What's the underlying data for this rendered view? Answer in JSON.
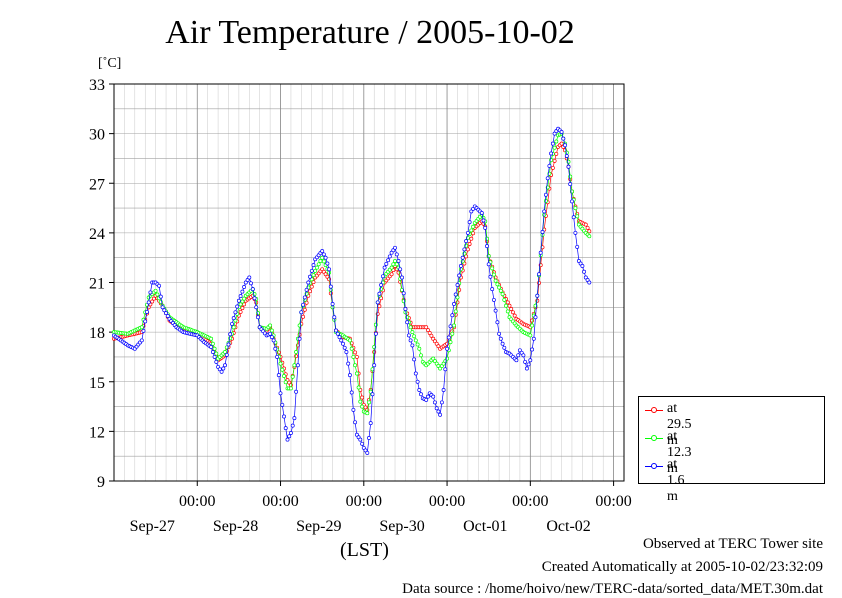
{
  "title": "Air Temperature / 2005-10-02",
  "unit": "[˚C]",
  "xlabel": "(LST)",
  "footer": {
    "line1": "Observed at TERC Tower site",
    "line2": "Created Automatically at 2005-10-02/23:32:09",
    "line3": "Data source : /home/hoivo/new/TERC-data/sorted_data/MET.30m.dat"
  },
  "colors": {
    "s1": "#ff0000",
    "s2": "#00ff00",
    "s3": "#0000ff",
    "grid": "#999999"
  },
  "chart_data": {
    "type": "line",
    "title": "Air Temperature / 2005-10-02",
    "ylabel": "[˚C]",
    "xlabel": "(LST)",
    "ylim": [
      9,
      33
    ],
    "yticks": [
      9,
      12,
      15,
      18,
      21,
      24,
      27,
      30,
      33
    ],
    "xlim_hours": [
      0,
      144
    ],
    "x_unit": "hours since 2005-09-26 12:00 LST",
    "xticks": [
      {
        "hour": 24,
        "time": "00:00",
        "date": "Sep-27"
      },
      {
        "hour": 48,
        "time": "00:00",
        "date": "Sep-28"
      },
      {
        "hour": 72,
        "time": "00:00",
        "date": "Sep-29"
      },
      {
        "hour": 96,
        "time": "00:00",
        "date": "Sep-30"
      },
      {
        "hour": 120,
        "time": "00:00",
        "date": "Oct-01"
      },
      {
        "hour": 144,
        "time": "00:00",
        "date": "Oct-02"
      }
    ],
    "grid": true,
    "legend_position": "bottom-right outside",
    "series": [
      {
        "name": "at 29.5 m",
        "color": "#ff0000",
        "points": [
          [
            0,
            17.6
          ],
          [
            4,
            17.8
          ],
          [
            8,
            18.0
          ],
          [
            10,
            19.5
          ],
          [
            12,
            20.2
          ],
          [
            14,
            19.6
          ],
          [
            16,
            18.7
          ],
          [
            20,
            18.1
          ],
          [
            24,
            17.9
          ],
          [
            28,
            17.3
          ],
          [
            30,
            16.3
          ],
          [
            32,
            16.6
          ],
          [
            34,
            17.6
          ],
          [
            36,
            19.0
          ],
          [
            38,
            19.9
          ],
          [
            40,
            20.2
          ],
          [
            41,
            19.8
          ],
          [
            42,
            18.3
          ],
          [
            44,
            18.1
          ],
          [
            45,
            18.3
          ],
          [
            46,
            17.6
          ],
          [
            48,
            16.5
          ],
          [
            50,
            15.1
          ],
          [
            51,
            14.8
          ],
          [
            52,
            15.9
          ],
          [
            54,
            18.5
          ],
          [
            56,
            20.2
          ],
          [
            58,
            21.3
          ],
          [
            60,
            21.8
          ],
          [
            62,
            21.2
          ],
          [
            63,
            19.5
          ],
          [
            64,
            18.1
          ],
          [
            66,
            17.7
          ],
          [
            68,
            17.6
          ],
          [
            70,
            16.5
          ],
          [
            71,
            14.5
          ],
          [
            72,
            13.6
          ],
          [
            73,
            13.3
          ],
          [
            74,
            14.5
          ],
          [
            76,
            19.1
          ],
          [
            78,
            21.0
          ],
          [
            80,
            21.5
          ],
          [
            81,
            22.0
          ],
          [
            82,
            21.6
          ],
          [
            84,
            19.4
          ],
          [
            86,
            18.3
          ],
          [
            90,
            18.3
          ],
          [
            92,
            17.6
          ],
          [
            94,
            17.0
          ],
          [
            96,
            17.3
          ],
          [
            98,
            18.3
          ],
          [
            100,
            21.3
          ],
          [
            102,
            23.0
          ],
          [
            104,
            24.3
          ],
          [
            106,
            24.7
          ],
          [
            107,
            24.4
          ],
          [
            108,
            22.6
          ],
          [
            110,
            21.3
          ],
          [
            112,
            20.4
          ],
          [
            114,
            19.6
          ],
          [
            116,
            18.8
          ],
          [
            118,
            18.5
          ],
          [
            120,
            18.3
          ],
          [
            122,
            19.9
          ],
          [
            124,
            24.2
          ],
          [
            126,
            27.5
          ],
          [
            128,
            29.2
          ],
          [
            129,
            29.4
          ],
          [
            130,
            29.0
          ],
          [
            131,
            28.0
          ],
          [
            132,
            26.5
          ],
          [
            134,
            24.7
          ],
          [
            136,
            24.5
          ],
          [
            137,
            24.1
          ]
        ]
      },
      {
        "name": "at 12.3 m",
        "color": "#00ff00",
        "points": [
          [
            0,
            18.0
          ],
          [
            4,
            17.9
          ],
          [
            8,
            18.3
          ],
          [
            10,
            20.1
          ],
          [
            12,
            20.5
          ],
          [
            14,
            19.6
          ],
          [
            16,
            18.9
          ],
          [
            20,
            18.3
          ],
          [
            24,
            18.0
          ],
          [
            28,
            17.6
          ],
          [
            30,
            16.4
          ],
          [
            32,
            16.8
          ],
          [
            34,
            17.9
          ],
          [
            36,
            19.5
          ],
          [
            38,
            20.2
          ],
          [
            40,
            20.6
          ],
          [
            41,
            20.0
          ],
          [
            42,
            18.3
          ],
          [
            44,
            18.2
          ],
          [
            45,
            18.4
          ],
          [
            46,
            17.8
          ],
          [
            48,
            16.1
          ],
          [
            50,
            14.6
          ],
          [
            51,
            14.6
          ],
          [
            52,
            16.0
          ],
          [
            54,
            19.2
          ],
          [
            56,
            20.7
          ],
          [
            58,
            21.7
          ],
          [
            60,
            22.5
          ],
          [
            62,
            21.6
          ],
          [
            63,
            19.5
          ],
          [
            64,
            18.0
          ],
          [
            66,
            17.8
          ],
          [
            68,
            17.5
          ],
          [
            70,
            15.5
          ],
          [
            71,
            13.8
          ],
          [
            72,
            13.2
          ],
          [
            73,
            13.1
          ],
          [
            74,
            14.4
          ],
          [
            76,
            19.8
          ],
          [
            78,
            21.4
          ],
          [
            80,
            21.9
          ],
          [
            81,
            22.3
          ],
          [
            82,
            21.9
          ],
          [
            84,
            19.2
          ],
          [
            86,
            18.0
          ],
          [
            88,
            17.0
          ],
          [
            89,
            16.2
          ],
          [
            90,
            16.0
          ],
          [
            92,
            16.4
          ],
          [
            94,
            15.8
          ],
          [
            96,
            16.4
          ],
          [
            98,
            18.4
          ],
          [
            100,
            21.8
          ],
          [
            102,
            23.7
          ],
          [
            104,
            24.6
          ],
          [
            106,
            25.1
          ],
          [
            107,
            24.7
          ],
          [
            108,
            22.6
          ],
          [
            110,
            21.1
          ],
          [
            112,
            20.3
          ],
          [
            114,
            18.9
          ],
          [
            116,
            18.4
          ],
          [
            118,
            18.0
          ],
          [
            120,
            17.8
          ],
          [
            122,
            20.2
          ],
          [
            124,
            25.1
          ],
          [
            126,
            28.4
          ],
          [
            128,
            29.9
          ],
          [
            129,
            30.0
          ],
          [
            130,
            29.4
          ],
          [
            131,
            28.3
          ],
          [
            132,
            26.5
          ],
          [
            134,
            24.5
          ],
          [
            136,
            24.0
          ],
          [
            137,
            23.8
          ]
        ]
      },
      {
        "name": "at 1.6 m",
        "color": "#0000ff",
        "points": [
          [
            0,
            17.8
          ],
          [
            2,
            17.5
          ],
          [
            4,
            17.2
          ],
          [
            6,
            17.0
          ],
          [
            8,
            17.5
          ],
          [
            10,
            19.8
          ],
          [
            11,
            21.0
          ],
          [
            12,
            21.0
          ],
          [
            13,
            20.8
          ],
          [
            14,
            19.5
          ],
          [
            16,
            18.8
          ],
          [
            18,
            18.3
          ],
          [
            20,
            18.0
          ],
          [
            22,
            17.9
          ],
          [
            24,
            17.8
          ],
          [
            26,
            17.4
          ],
          [
            28,
            17.1
          ],
          [
            30,
            15.9
          ],
          [
            31,
            15.6
          ],
          [
            32,
            16.0
          ],
          [
            34,
            18.5
          ],
          [
            36,
            19.9
          ],
          [
            38,
            21.0
          ],
          [
            39,
            21.3
          ],
          [
            40,
            20.6
          ],
          [
            41,
            19.5
          ],
          [
            42,
            18.3
          ],
          [
            44,
            17.8
          ],
          [
            45,
            17.9
          ],
          [
            46,
            17.5
          ],
          [
            47,
            16.5
          ],
          [
            48,
            14.3
          ],
          [
            49,
            12.9
          ],
          [
            50,
            11.5
          ],
          [
            51,
            11.9
          ],
          [
            52,
            12.8
          ],
          [
            53,
            16.0
          ],
          [
            54,
            19.2
          ],
          [
            56,
            21.0
          ],
          [
            58,
            22.4
          ],
          [
            60,
            22.9
          ],
          [
            61,
            22.5
          ],
          [
            62,
            21.8
          ],
          [
            63,
            19.7
          ],
          [
            64,
            18.1
          ],
          [
            66,
            17.3
          ],
          [
            67,
            16.8
          ],
          [
            68,
            15.4
          ],
          [
            69,
            13.3
          ],
          [
            70,
            11.8
          ],
          [
            71,
            11.5
          ],
          [
            72,
            11.0
          ],
          [
            73,
            10.7
          ],
          [
            74,
            12.5
          ],
          [
            75,
            16.0
          ],
          [
            76,
            19.8
          ],
          [
            78,
            21.9
          ],
          [
            80,
            22.8
          ],
          [
            81,
            23.1
          ],
          [
            82,
            22.3
          ],
          [
            83,
            21.3
          ],
          [
            84,
            19.4
          ],
          [
            85,
            17.8
          ],
          [
            86,
            17.2
          ],
          [
            87,
            15.5
          ],
          [
            88,
            14.5
          ],
          [
            89,
            14.0
          ],
          [
            90,
            13.9
          ],
          [
            91,
            14.3
          ],
          [
            92,
            14.1
          ],
          [
            93,
            13.4
          ],
          [
            94,
            13.0
          ],
          [
            95,
            14.5
          ],
          [
            96,
            17.0
          ],
          [
            98,
            19.7
          ],
          [
            100,
            22.0
          ],
          [
            102,
            24.0
          ],
          [
            103,
            25.3
          ],
          [
            104,
            25.6
          ],
          [
            105,
            25.4
          ],
          [
            106,
            25.2
          ],
          [
            107,
            24.3
          ],
          [
            108,
            22.1
          ],
          [
            109,
            20.6
          ],
          [
            110,
            19.3
          ],
          [
            111,
            17.9
          ],
          [
            112,
            17.3
          ],
          [
            113,
            16.8
          ],
          [
            114,
            16.7
          ],
          [
            115,
            16.5
          ],
          [
            116,
            16.3
          ],
          [
            117,
            16.9
          ],
          [
            118,
            16.6
          ],
          [
            119,
            15.8
          ],
          [
            120,
            16.3
          ],
          [
            121,
            17.6
          ],
          [
            122,
            20.2
          ],
          [
            123,
            22.8
          ],
          [
            124,
            25.3
          ],
          [
            125,
            27.3
          ],
          [
            126,
            28.8
          ],
          [
            127,
            30.0
          ],
          [
            128,
            30.3
          ],
          [
            129,
            30.1
          ],
          [
            130,
            29.3
          ],
          [
            131,
            28.0
          ],
          [
            132,
            25.9
          ],
          [
            133,
            24.0
          ],
          [
            134,
            22.3
          ],
          [
            135,
            22.0
          ],
          [
            136,
            21.3
          ],
          [
            137,
            21.0
          ]
        ]
      }
    ]
  }
}
